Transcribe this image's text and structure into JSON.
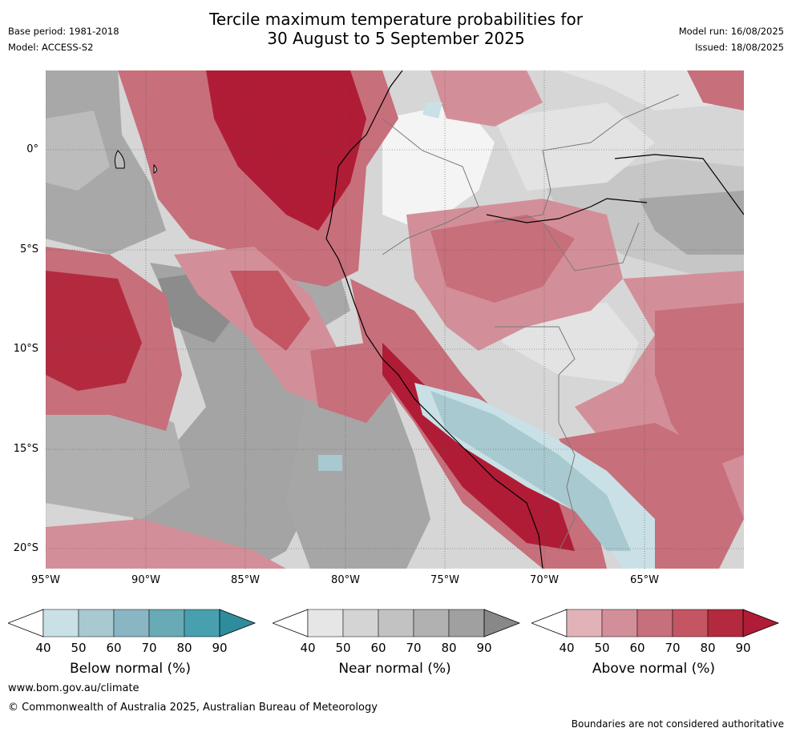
{
  "title_line1": "Tercile maximum temperature probabilities for",
  "title_line2": "30 August to 5 September 2025",
  "base_period": "Base period: 1981-2018",
  "model": "Model: ACCESS-S2",
  "model_run": "Model run: 16/08/2025",
  "issued": "Issued: 18/08/2025",
  "lat_labels": [
    "0°",
    "5°S",
    "10°S",
    "15°S",
    "20°S"
  ],
  "lon_labels": [
    "95°W",
    "90°W",
    "85°W",
    "80°W",
    "75°W",
    "70°W",
    "65°W"
  ],
  "colorbars": [
    {
      "title": "Below normal (%)",
      "ticks": [
        "40",
        "50",
        "60",
        "70",
        "80",
        "90"
      ],
      "colors": [
        "#ffffff",
        "#c9e1e6",
        "#a7c9cf",
        "#88b6c2",
        "#69aab7",
        "#48a0af",
        "#2f8c9c"
      ]
    },
    {
      "title": "Near normal (%)",
      "ticks": [
        "40",
        "50",
        "60",
        "70",
        "80",
        "90"
      ],
      "colors": [
        "#ffffff",
        "#e6e6e6",
        "#d4d4d4",
        "#c2c2c2",
        "#b1b1b1",
        "#a0a0a0",
        "#888888"
      ]
    },
    {
      "title": "Above normal (%)",
      "ticks": [
        "40",
        "50",
        "60",
        "70",
        "80",
        "90"
      ],
      "colors": [
        "#ffffff",
        "#e1b3b9",
        "#d38f99",
        "#c76f7b",
        "#c45563",
        "#b32a3e",
        "#b01c36"
      ]
    }
  ],
  "footer_url": "www.bom.gov.au/climate",
  "copyright": "© Commonwealth of Australia 2025, Australian Bureau of Meteorology",
  "disclaimer": "Boundaries are not considered authoritative"
}
